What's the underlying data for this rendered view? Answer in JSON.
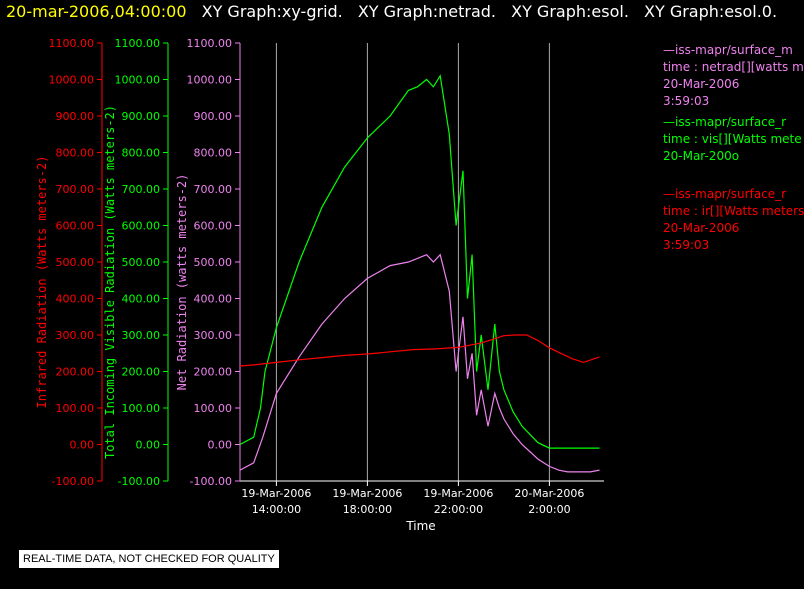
{
  "header": {
    "timestamp": "20-mar-2006,04:00:00",
    "titles": [
      "XY Graph:xy-grid.",
      "XY Graph:netrad.",
      "XY Graph:esol.",
      "XY Graph:esol.0."
    ]
  },
  "legend": [
    {
      "name": "netrad",
      "color": "#ee82ee",
      "lines": [
        "—iss-mapr/surface_m",
        "time : netrad[][watts m",
        "20-Mar-2006",
        "3:59:03"
      ]
    },
    {
      "name": "vis",
      "color": "#00ff00",
      "lines": [
        "—iss-mapr/surface_r",
        "time : vis[][Watts mete",
        "20-Mar-200o"
      ]
    },
    {
      "name": "ir",
      "color": "#ff0000",
      "lines": [
        "—iss-mapr/surface_r",
        "time : ir[][Watts meters",
        "20-Mar-2006",
        "3:59:03"
      ]
    }
  ],
  "footer": "REAL-TIME DATA, NOT CHECKED FOR QUALITY",
  "chart_data": {
    "type": "line",
    "xlabel": "Time",
    "x_ticks": [
      {
        "hour": 14,
        "line1": "19-Mar-2006",
        "line2": "14:00:00"
      },
      {
        "hour": 18,
        "line1": "19-Mar-2006",
        "line2": "18:00:00"
      },
      {
        "hour": 22,
        "line1": "19-Mar-2006",
        "line2": "22:00:00"
      },
      {
        "hour": 26,
        "line1": "20-Mar-2006",
        "line2": "2:00:00"
      }
    ],
    "x_unit": "hours from 19-Mar-2006 00:00",
    "xlim": [
      12.4,
      28.4
    ],
    "grid": "vertical lines at x ticks",
    "y_axes": [
      {
        "label": "Infrared Radiation (Watts meters-2)",
        "color": "#ff0000",
        "ylim": [
          -100,
          1100
        ]
      },
      {
        "label": "Total Incoming Visible Radiation (Watts meters-2)",
        "color": "#00ff00",
        "ylim": [
          -100,
          1100
        ]
      },
      {
        "label": "Net Radiation (watts meters-2)",
        "color": "#ee82ee",
        "ylim": [
          -100,
          1100
        ]
      }
    ],
    "y_ticks": [
      "1100.00",
      "1000.00",
      "900.00",
      "800.00",
      "700.00",
      "600.00",
      "500.00",
      "400.00",
      "300.00",
      "200.00",
      "100.00",
      "0.00",
      "-100.00"
    ],
    "series": [
      {
        "name": "vis",
        "color": "#00ff00",
        "x": [
          12.4,
          13.0,
          13.3,
          13.5,
          14.0,
          15.0,
          16.0,
          17.0,
          18.0,
          19.0,
          19.8,
          20.2,
          20.6,
          20.9,
          21.2,
          21.6,
          21.9,
          22.2,
          22.4,
          22.6,
          22.8,
          23.0,
          23.3,
          23.6,
          23.8,
          24.0,
          24.4,
          24.8,
          25.5,
          26.0,
          26.4,
          26.8,
          27.3,
          27.8,
          28.2
        ],
        "y": [
          0,
          20,
          100,
          200,
          320,
          500,
          650,
          760,
          840,
          900,
          970,
          980,
          1000,
          980,
          1010,
          850,
          600,
          750,
          400,
          520,
          200,
          300,
          150,
          330,
          200,
          150,
          90,
          50,
          5,
          -10,
          -10,
          -10,
          -10,
          -10,
          -10
        ]
      },
      {
        "name": "netrad",
        "color": "#ee82ee",
        "x": [
          12.4,
          13.0,
          13.4,
          13.7,
          14.0,
          15.0,
          16.0,
          17.0,
          18.0,
          19.0,
          19.8,
          20.2,
          20.6,
          20.9,
          21.2,
          21.6,
          21.9,
          22.2,
          22.4,
          22.6,
          22.8,
          23.0,
          23.3,
          23.6,
          23.8,
          24.0,
          24.4,
          24.8,
          25.5,
          26.0,
          26.4,
          26.8,
          27.3,
          27.8,
          28.2
        ],
        "y": [
          -70,
          -50,
          20,
          80,
          140,
          240,
          330,
          400,
          455,
          490,
          500,
          510,
          520,
          500,
          520,
          420,
          200,
          350,
          180,
          250,
          80,
          150,
          50,
          140,
          100,
          70,
          30,
          0,
          -40,
          -60,
          -70,
          -75,
          -75,
          -75,
          -70
        ]
      },
      {
        "name": "ir",
        "color": "#ff0000",
        "x": [
          12.4,
          13.0,
          14.0,
          15.0,
          16.0,
          17.0,
          18.0,
          19.0,
          20.0,
          21.0,
          22.0,
          22.5,
          23.0,
          23.5,
          24.0,
          24.5,
          25.0,
          25.5,
          26.0,
          26.5,
          27.0,
          27.5,
          28.2
        ],
        "y": [
          215,
          218,
          225,
          232,
          238,
          244,
          248,
          254,
          260,
          262,
          266,
          272,
          278,
          288,
          298,
          300,
          300,
          285,
          265,
          250,
          235,
          225,
          240
        ]
      }
    ]
  }
}
